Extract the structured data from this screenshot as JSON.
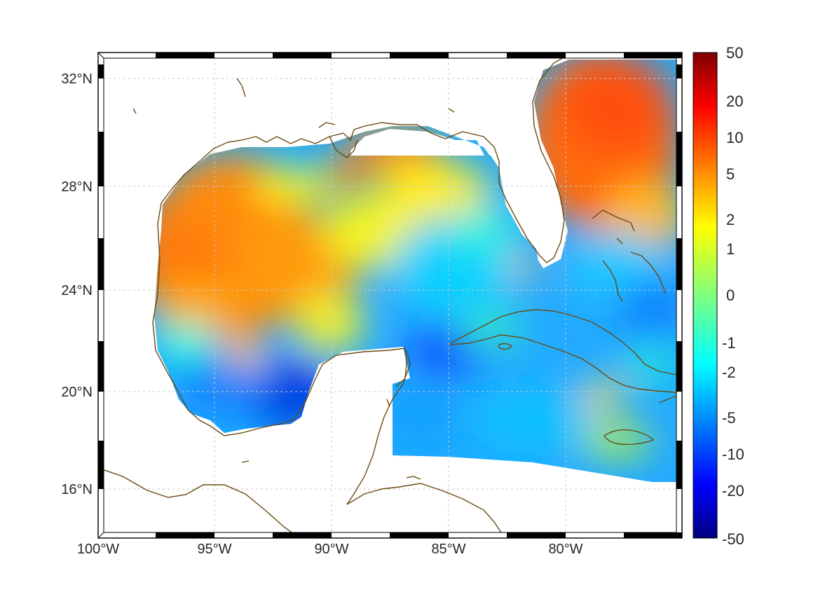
{
  "map": {
    "projection": "mercator",
    "lon_range": [
      -100,
      -75
    ],
    "lat_range": [
      14.2,
      33
    ],
    "grid": true,
    "lon_ticks": [
      {
        "value": -100,
        "label": "100°W"
      },
      {
        "value": -95,
        "label": "95°W"
      },
      {
        "value": -90,
        "label": "90°W"
      },
      {
        "value": -85,
        "label": "85°W"
      },
      {
        "value": -80,
        "label": "80°W"
      }
    ],
    "lat_ticks": [
      {
        "value": 32,
        "label": "32°N"
      },
      {
        "value": 28,
        "label": "28°N"
      },
      {
        "value": 24,
        "label": "24°N"
      },
      {
        "value": 20,
        "label": "20°N"
      },
      {
        "value": 16,
        "label": "16°N"
      }
    ],
    "coastline_color": "#6b4a14",
    "field_shown": "Gulf of Mexico and western Caribbean: high values (orange/red) over the northern and western Gulf and the Atlantic off Florida; low values (blue) over the southeastern Gulf, Yucatan Channel and Caribbean."
  },
  "colorbar": {
    "colormap": "jet",
    "scale": "symmetric-log",
    "labels": [
      "50",
      "20",
      "10",
      "5",
      "2",
      "1",
      "0",
      "-1",
      "-2",
      "-5",
      "-10",
      "-20",
      "-50"
    ]
  }
}
